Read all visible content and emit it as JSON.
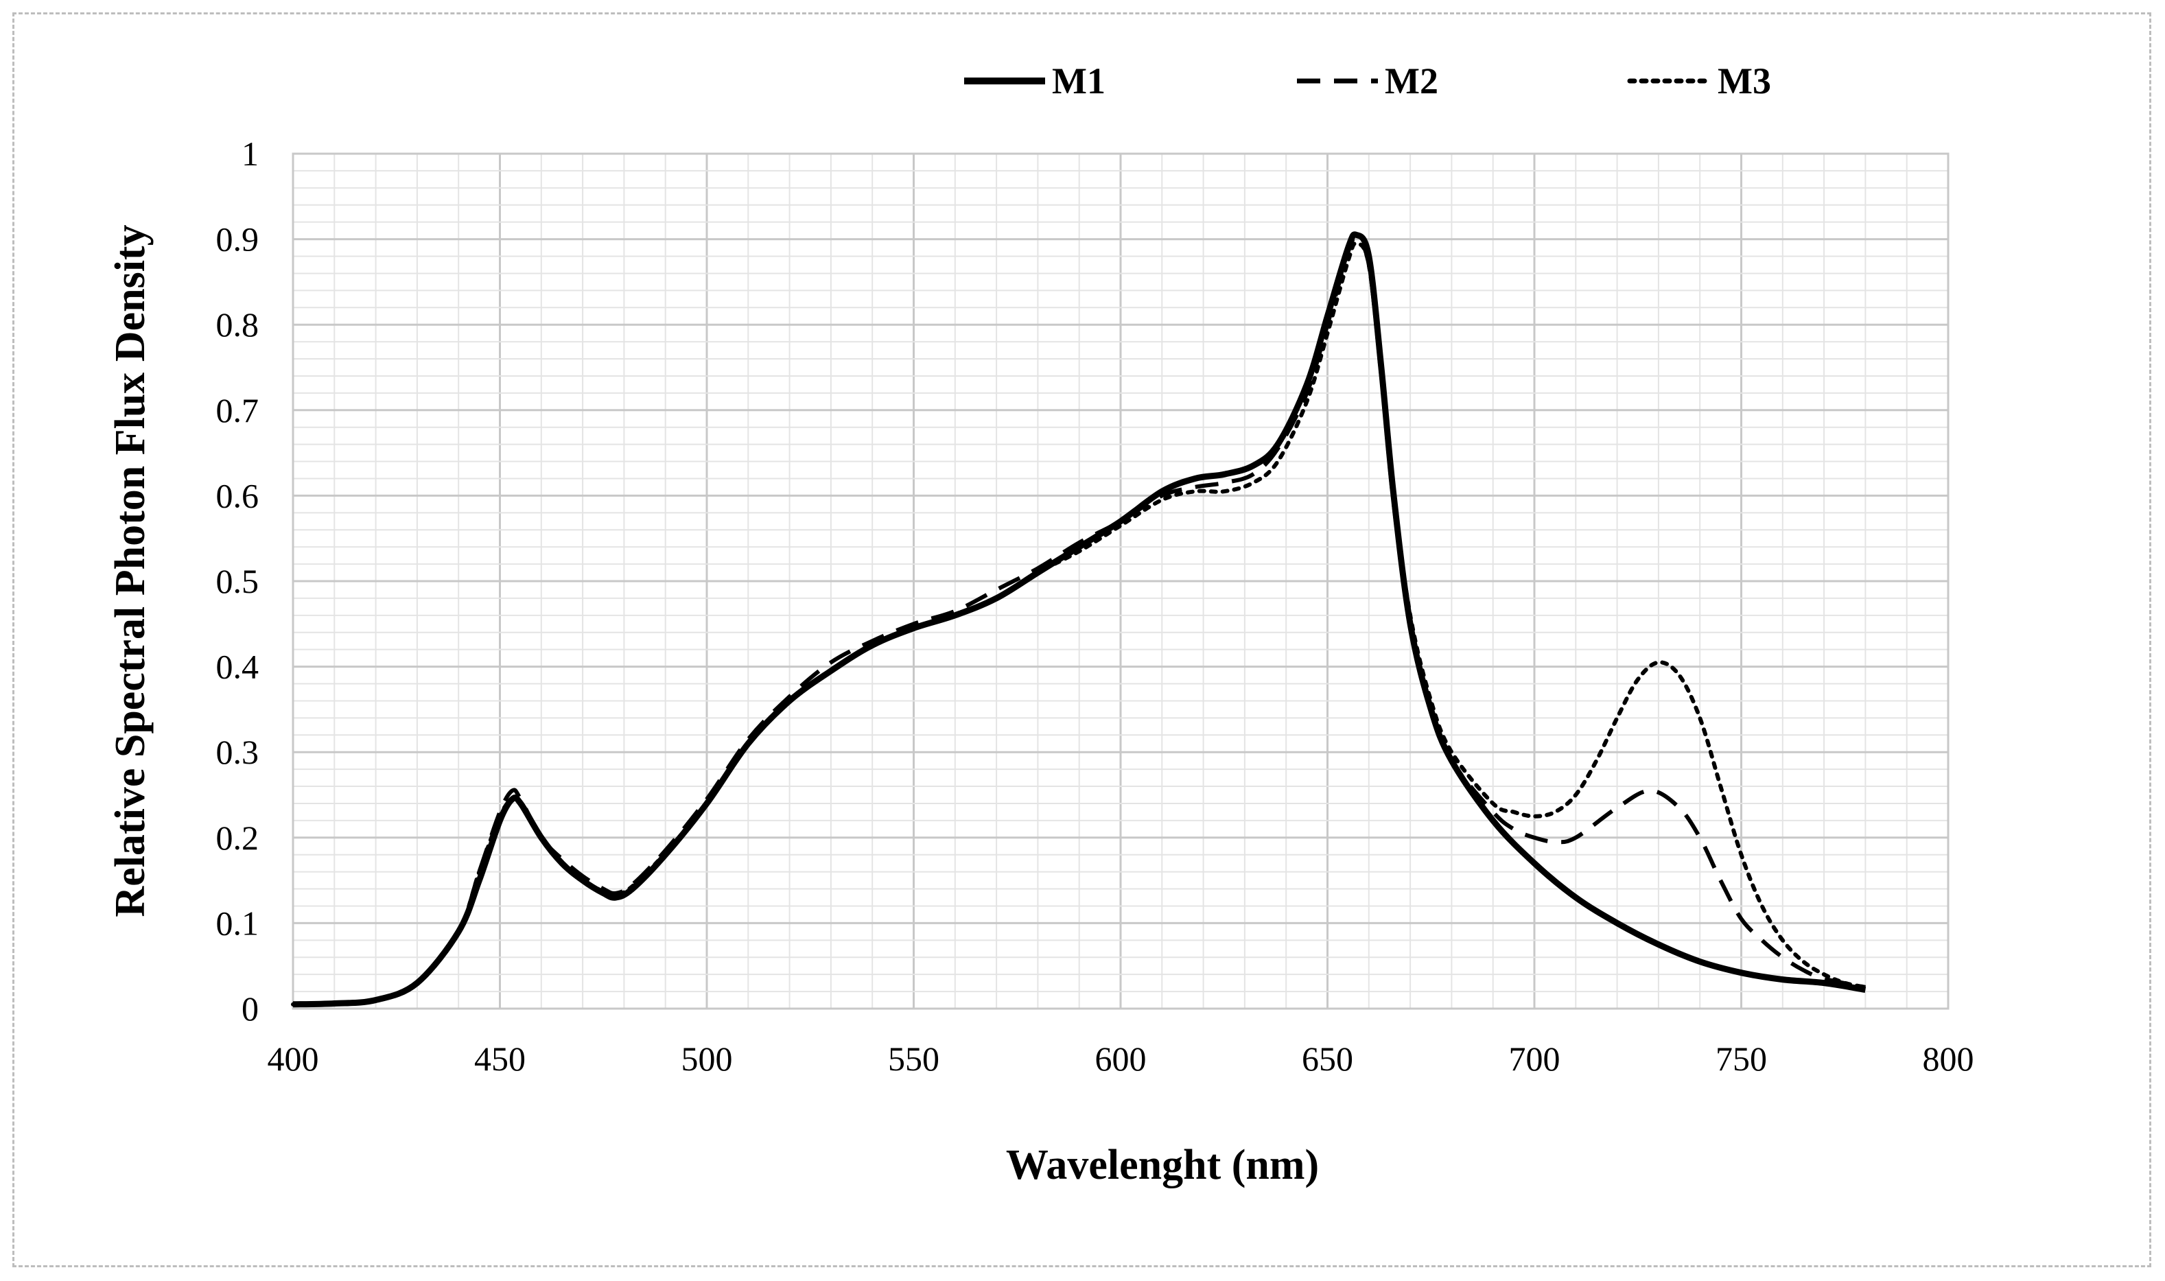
{
  "chart_data": {
    "type": "line",
    "title": "",
    "xlabel": "Wavelenght (nm)",
    "ylabel": "Relative Spectral Photon Flux Density",
    "xlim": [
      400,
      800
    ],
    "ylim": [
      0,
      1
    ],
    "x_ticks": [
      "400",
      "450",
      "500",
      "550",
      "600",
      "650",
      "700",
      "750",
      "800"
    ],
    "y_ticks": [
      "0",
      "0.1",
      "0.2",
      "0.3",
      "0.4",
      "0.5",
      "0.6",
      "0.7",
      "0.8",
      "0.9",
      "1"
    ],
    "grid": true,
    "legend_position": "top",
    "series": [
      {
        "name": "M1",
        "style": "solid",
        "color": "#000000",
        "points": [
          [
            400,
            0.005
          ],
          [
            410,
            0.006
          ],
          [
            420,
            0.01
          ],
          [
            430,
            0.03
          ],
          [
            440,
            0.09
          ],
          [
            445,
            0.15
          ],
          [
            450,
            0.22
          ],
          [
            453,
            0.245
          ],
          [
            455,
            0.24
          ],
          [
            460,
            0.2
          ],
          [
            465,
            0.17
          ],
          [
            470,
            0.15
          ],
          [
            475,
            0.135
          ],
          [
            478,
            0.13
          ],
          [
            482,
            0.14
          ],
          [
            490,
            0.18
          ],
          [
            500,
            0.24
          ],
          [
            510,
            0.31
          ],
          [
            520,
            0.36
          ],
          [
            530,
            0.395
          ],
          [
            540,
            0.425
          ],
          [
            550,
            0.445
          ],
          [
            560,
            0.46
          ],
          [
            570,
            0.48
          ],
          [
            580,
            0.51
          ],
          [
            590,
            0.54
          ],
          [
            600,
            0.57
          ],
          [
            610,
            0.605
          ],
          [
            618,
            0.62
          ],
          [
            625,
            0.625
          ],
          [
            632,
            0.635
          ],
          [
            638,
            0.66
          ],
          [
            645,
            0.73
          ],
          [
            650,
            0.81
          ],
          [
            655,
            0.89
          ],
          [
            657,
            0.905
          ],
          [
            660,
            0.88
          ],
          [
            663,
            0.75
          ],
          [
            666,
            0.6
          ],
          [
            670,
            0.45
          ],
          [
            675,
            0.35
          ],
          [
            680,
            0.29
          ],
          [
            690,
            0.22
          ],
          [
            700,
            0.17
          ],
          [
            710,
            0.13
          ],
          [
            720,
            0.1
          ],
          [
            730,
            0.075
          ],
          [
            740,
            0.055
          ],
          [
            750,
            0.042
          ],
          [
            760,
            0.034
          ],
          [
            770,
            0.03
          ],
          [
            780,
            0.022
          ]
        ]
      },
      {
        "name": "M2",
        "style": "dashed",
        "color": "#000000",
        "points": [
          [
            400,
            0.005
          ],
          [
            410,
            0.006
          ],
          [
            420,
            0.01
          ],
          [
            430,
            0.03
          ],
          [
            440,
            0.09
          ],
          [
            445,
            0.16
          ],
          [
            450,
            0.23
          ],
          [
            453,
            0.255
          ],
          [
            455,
            0.245
          ],
          [
            460,
            0.2
          ],
          [
            465,
            0.175
          ],
          [
            470,
            0.155
          ],
          [
            475,
            0.14
          ],
          [
            478,
            0.135
          ],
          [
            482,
            0.145
          ],
          [
            490,
            0.185
          ],
          [
            500,
            0.245
          ],
          [
            510,
            0.315
          ],
          [
            520,
            0.365
          ],
          [
            530,
            0.405
          ],
          [
            540,
            0.43
          ],
          [
            550,
            0.45
          ],
          [
            560,
            0.465
          ],
          [
            570,
            0.49
          ],
          [
            580,
            0.515
          ],
          [
            590,
            0.545
          ],
          [
            600,
            0.57
          ],
          [
            610,
            0.6
          ],
          [
            618,
            0.61
          ],
          [
            625,
            0.615
          ],
          [
            632,
            0.625
          ],
          [
            638,
            0.655
          ],
          [
            645,
            0.72
          ],
          [
            650,
            0.8
          ],
          [
            655,
            0.885
          ],
          [
            657,
            0.9
          ],
          [
            660,
            0.87
          ],
          [
            663,
            0.74
          ],
          [
            666,
            0.59
          ],
          [
            670,
            0.45
          ],
          [
            675,
            0.35
          ],
          [
            680,
            0.29
          ],
          [
            690,
            0.23
          ],
          [
            695,
            0.21
          ],
          [
            700,
            0.2
          ],
          [
            705,
            0.195
          ],
          [
            710,
            0.2
          ],
          [
            720,
            0.235
          ],
          [
            728,
            0.255
          ],
          [
            735,
            0.235
          ],
          [
            740,
            0.2
          ],
          [
            745,
            0.15
          ],
          [
            750,
            0.105
          ],
          [
            755,
            0.08
          ],
          [
            760,
            0.06
          ],
          [
            765,
            0.045
          ],
          [
            770,
            0.035
          ],
          [
            780,
            0.025
          ]
        ]
      },
      {
        "name": "M3",
        "style": "dotted",
        "color": "#000000",
        "points": [
          [
            400,
            0.005
          ],
          [
            410,
            0.006
          ],
          [
            420,
            0.01
          ],
          [
            430,
            0.03
          ],
          [
            440,
            0.09
          ],
          [
            445,
            0.16
          ],
          [
            450,
            0.225
          ],
          [
            453,
            0.245
          ],
          [
            455,
            0.24
          ],
          [
            460,
            0.2
          ],
          [
            465,
            0.17
          ],
          [
            470,
            0.15
          ],
          [
            475,
            0.137
          ],
          [
            478,
            0.133
          ],
          [
            482,
            0.143
          ],
          [
            490,
            0.182
          ],
          [
            500,
            0.24
          ],
          [
            510,
            0.31
          ],
          [
            520,
            0.36
          ],
          [
            530,
            0.395
          ],
          [
            540,
            0.425
          ],
          [
            550,
            0.445
          ],
          [
            560,
            0.46
          ],
          [
            570,
            0.48
          ],
          [
            580,
            0.51
          ],
          [
            590,
            0.535
          ],
          [
            600,
            0.565
          ],
          [
            610,
            0.595
          ],
          [
            618,
            0.605
          ],
          [
            625,
            0.605
          ],
          [
            632,
            0.615
          ],
          [
            638,
            0.64
          ],
          [
            645,
            0.71
          ],
          [
            650,
            0.79
          ],
          [
            655,
            0.875
          ],
          [
            657,
            0.895
          ],
          [
            660,
            0.87
          ],
          [
            663,
            0.74
          ],
          [
            666,
            0.6
          ],
          [
            670,
            0.46
          ],
          [
            675,
            0.36
          ],
          [
            680,
            0.3
          ],
          [
            690,
            0.24
          ],
          [
            695,
            0.23
          ],
          [
            700,
            0.225
          ],
          [
            705,
            0.23
          ],
          [
            710,
            0.25
          ],
          [
            715,
            0.29
          ],
          [
            720,
            0.34
          ],
          [
            725,
            0.385
          ],
          [
            730,
            0.405
          ],
          [
            735,
            0.39
          ],
          [
            740,
            0.34
          ],
          [
            745,
            0.26
          ],
          [
            750,
            0.18
          ],
          [
            755,
            0.12
          ],
          [
            760,
            0.08
          ],
          [
            765,
            0.055
          ],
          [
            770,
            0.04
          ],
          [
            775,
            0.03
          ],
          [
            780,
            0.025
          ]
        ]
      }
    ]
  }
}
